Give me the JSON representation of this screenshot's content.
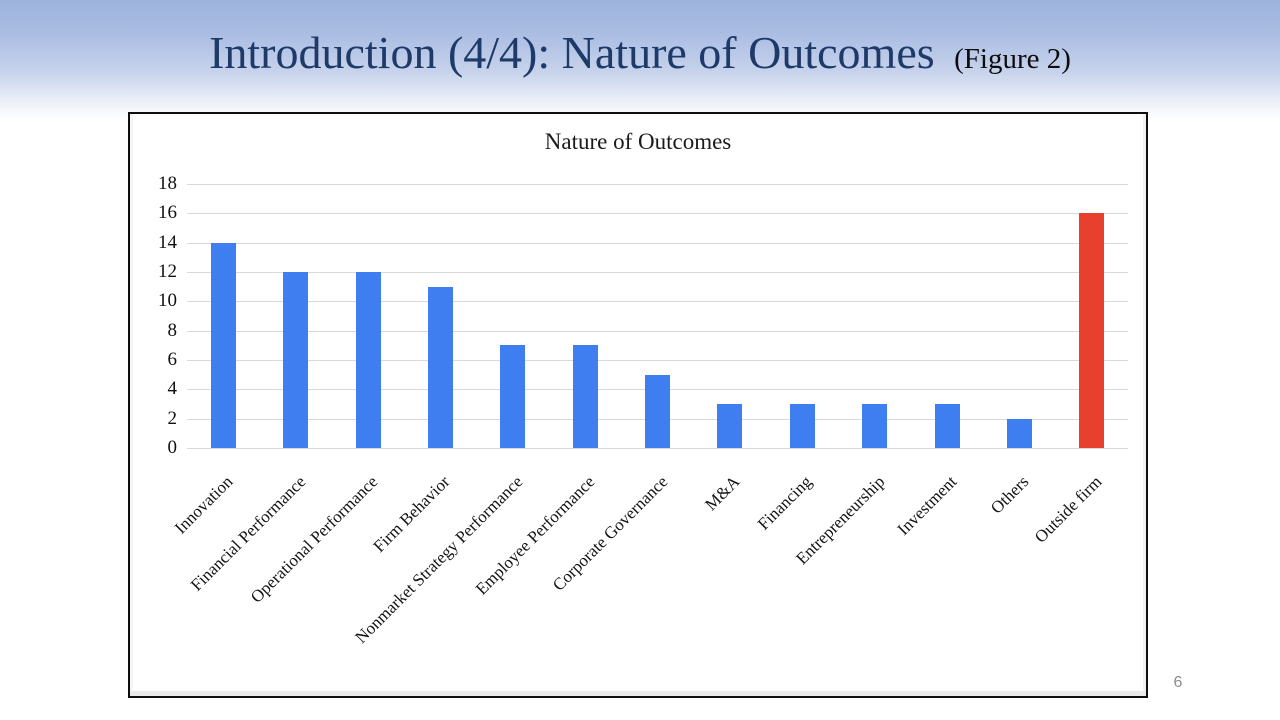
{
  "slide": {
    "title": "Introduction (4/4): Nature of Outcomes",
    "title_suffix": "(Figure 2)",
    "page_number": "6"
  },
  "chart_data": {
    "type": "bar",
    "title": "Nature of Outcomes",
    "categories": [
      "Innovation",
      "Financial Performance",
      "Operational Performance",
      "Firm Behavior",
      "Nonmarket Strategy Performance",
      "Employee Performance",
      "Corporate Governance",
      "M&A",
      "Financing",
      "Entrepreneurship",
      "Investment",
      "Others",
      "Outside firm"
    ],
    "values": [
      14,
      12,
      12,
      11,
      7,
      7,
      5,
      3,
      3,
      3,
      3,
      2,
      16
    ],
    "highlight_index": 12,
    "xlabel": "",
    "ylabel": "",
    "ylim": [
      0,
      18
    ],
    "ytick_step": 2,
    "yticks": [
      0,
      2,
      4,
      6,
      8,
      10,
      12,
      14,
      16,
      18
    ],
    "grid": true,
    "legend_position": "none",
    "colors": {
      "bar_default": "#3e7ef0",
      "bar_highlight": "#e8402e",
      "gridline": "#d9d9d9"
    }
  },
  "theme": {
    "title_color": "#1e3a68",
    "background_top": "#9db3dc",
    "page_number_color": "#8c8c8c"
  }
}
